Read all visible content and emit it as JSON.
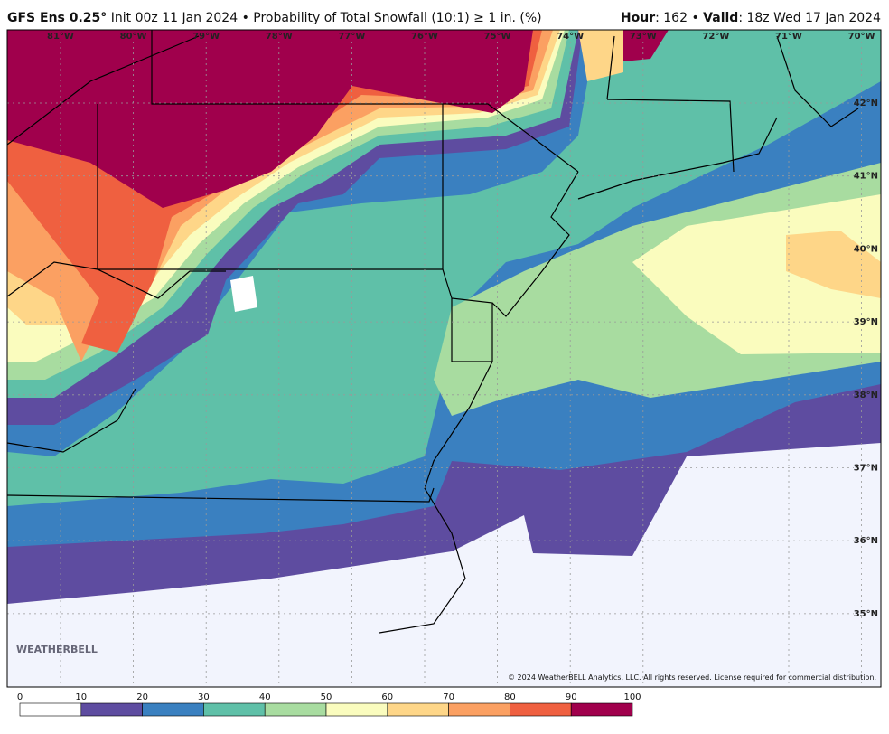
{
  "header": {
    "model": "GFS Ens 0.25°",
    "description": "Init 00z 11 Jan 2024 • Probability of Total Snowfall (10:1) ≥ 1 in. (%)",
    "hour_label": "Hour",
    "hour_value": ": 162 •",
    "valid_label": "Valid",
    "valid_value": ": 18z Wed 17 Jan 2024"
  },
  "longitudes": [
    "81°W",
    "80°W",
    "79°W",
    "78°W",
    "77°W",
    "76°W",
    "75°W",
    "74°W",
    "73°W",
    "72°W",
    "71°W",
    "70°W"
  ],
  "latitudes": [
    "42°N",
    "41°N",
    "40°N",
    "39°N",
    "38°N",
    "37°N",
    "36°N",
    "35°N"
  ],
  "logo": "WEATHERBELL",
  "copyright": "© 2024 WeatherBELL Analytics, LLC. All rights reserved. License required for commercial distribution.",
  "colorbar": {
    "ticks": [
      0,
      10,
      20,
      30,
      40,
      50,
      60,
      70,
      80,
      90,
      100
    ],
    "colors": [
      "#ffffff",
      "#5e4ca0",
      "#3a80c0",
      "#5fc0a8",
      "#a8dca0",
      "#fafcbe",
      "#fed688",
      "#fba062",
      "#ef6040",
      "#a0004c"
    ]
  }
}
